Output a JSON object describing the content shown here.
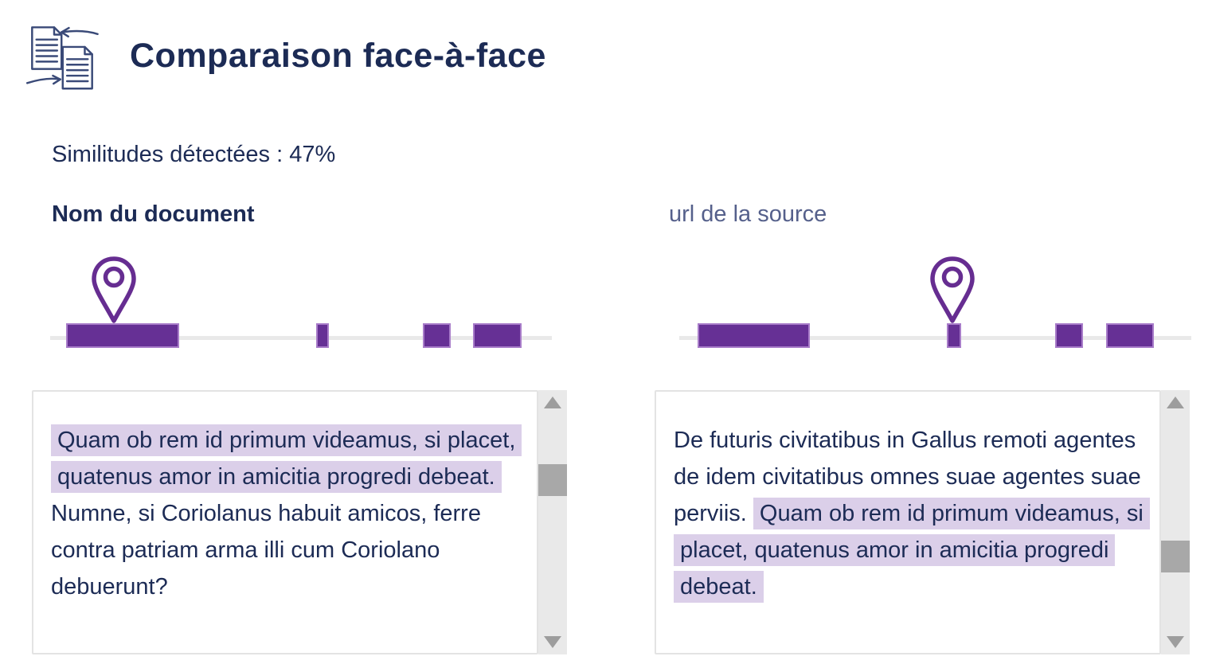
{
  "header": {
    "title": "Comparaison face-à-face",
    "icon": "compare-documents-icon"
  },
  "similarity_label": "Similitudes détectées : 47%",
  "panels": {
    "left": {
      "title": "Nom du document",
      "timeline": {
        "marker_center_pct": 12.7,
        "segments": [
          {
            "left_pct": 3.2,
            "width_pct": 22.5
          },
          {
            "left_pct": 53.0,
            "width_pct": 2.6
          },
          {
            "left_pct": 74.3,
            "width_pct": 5.6
          },
          {
            "left_pct": 84.3,
            "width_pct": 9.7
          }
        ]
      },
      "scrollbar_thumb_top_pct": 28,
      "text_segments": [
        {
          "highlight": true,
          "text": "Quam ob rem id primum videamus, si placet, quatenus amor in amicitia progredi debeat."
        },
        {
          "highlight": false,
          "text": " Numne, si Coriolanus habuit amicos, ferre contra patriam arma illi cum Coriolano debuerunt?"
        }
      ]
    },
    "right": {
      "title": "url de la source",
      "timeline": {
        "marker_center_pct": 53.3,
        "segments": [
          {
            "left_pct": 3.6,
            "width_pct": 21.9
          },
          {
            "left_pct": 52.3,
            "width_pct": 2.7
          },
          {
            "left_pct": 73.4,
            "width_pct": 5.5
          },
          {
            "left_pct": 83.3,
            "width_pct": 9.4
          }
        ]
      },
      "scrollbar_thumb_top_pct": 57,
      "text_segments": [
        {
          "highlight": false,
          "text": "De futuris civitatibus in Gallus remoti agentes de idem civitatibus omnes suae agentes suae perviis. "
        },
        {
          "highlight": true,
          "text": "Quam ob rem id primum videamus, si placet, quatenus amor in amicitia progredi debeat."
        }
      ]
    }
  },
  "colors": {
    "navy_text": "#1c2b55",
    "muted_label": "#55608b",
    "purple": "#663095",
    "purple_light_border": "#a87cc9",
    "highlight": "#dbcfe9",
    "timeline_track": "#e9e9e9",
    "box_border": "#e3e3e3",
    "scrollbar_track": "#e9e9e9",
    "scrollbar_thumb": "#a8a8a8",
    "scrollbar_arrow": "#9d9d9d"
  }
}
